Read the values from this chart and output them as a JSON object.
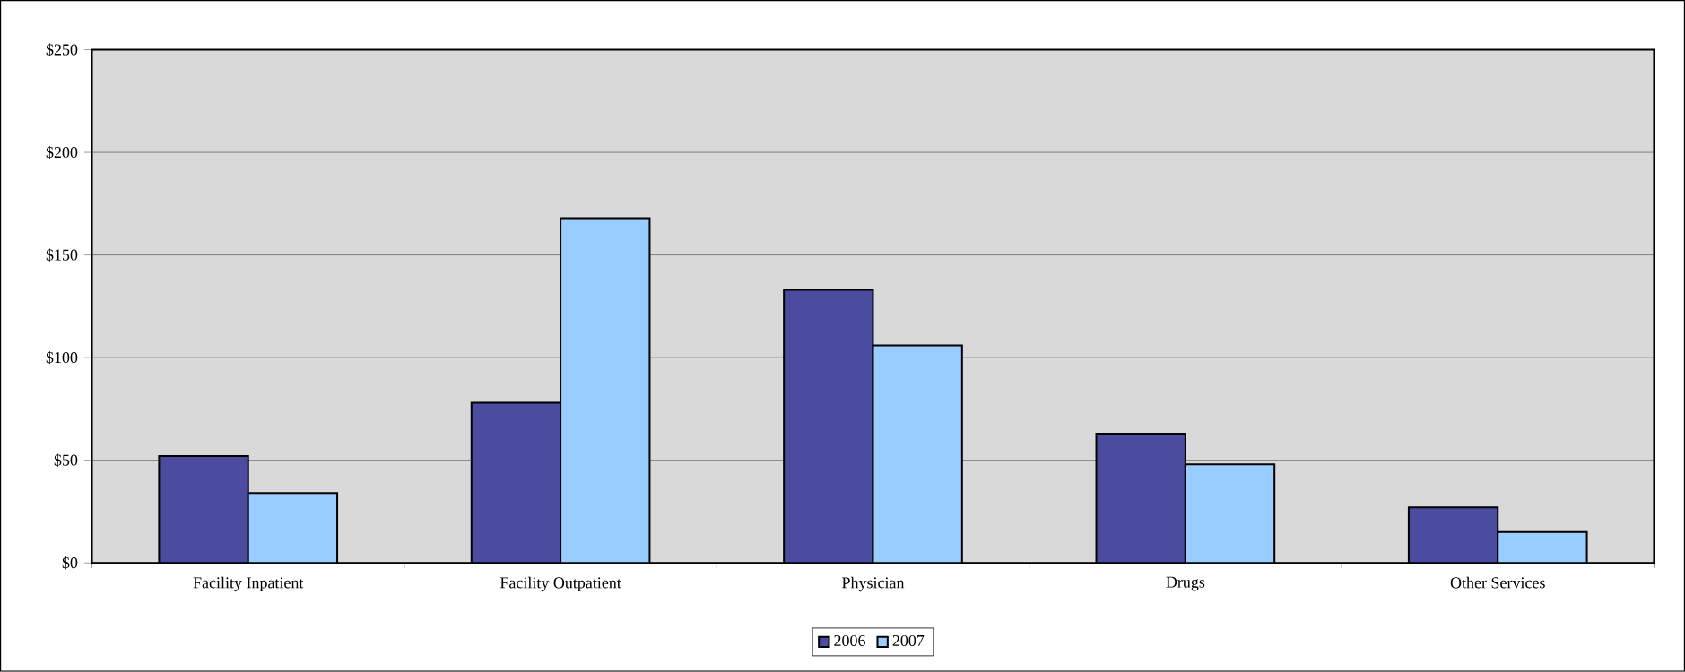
{
  "chart_data": {
    "type": "bar",
    "categories": [
      "Facility Inpatient",
      "Facility Outpatient",
      "Physician",
      "Drugs",
      "Other Services"
    ],
    "series": [
      {
        "name": "2006",
        "color": "#4b4ba0",
        "values": [
          52,
          78,
          133,
          63,
          27
        ]
      },
      {
        "name": "2007",
        "color": "#99ccff",
        "values": [
          34,
          168,
          106,
          48,
          15
        ]
      }
    ],
    "ylim": [
      0,
      250
    ],
    "yticks": [
      {
        "value": 0,
        "label": "$0"
      },
      {
        "value": 50,
        "label": "$50"
      },
      {
        "value": 100,
        "label": "$100"
      },
      {
        "value": 150,
        "label": "$150"
      },
      {
        "value": 200,
        "label": "$200"
      },
      {
        "value": 250,
        "label": "$250"
      }
    ],
    "grid": "y",
    "legend": "bottom"
  }
}
